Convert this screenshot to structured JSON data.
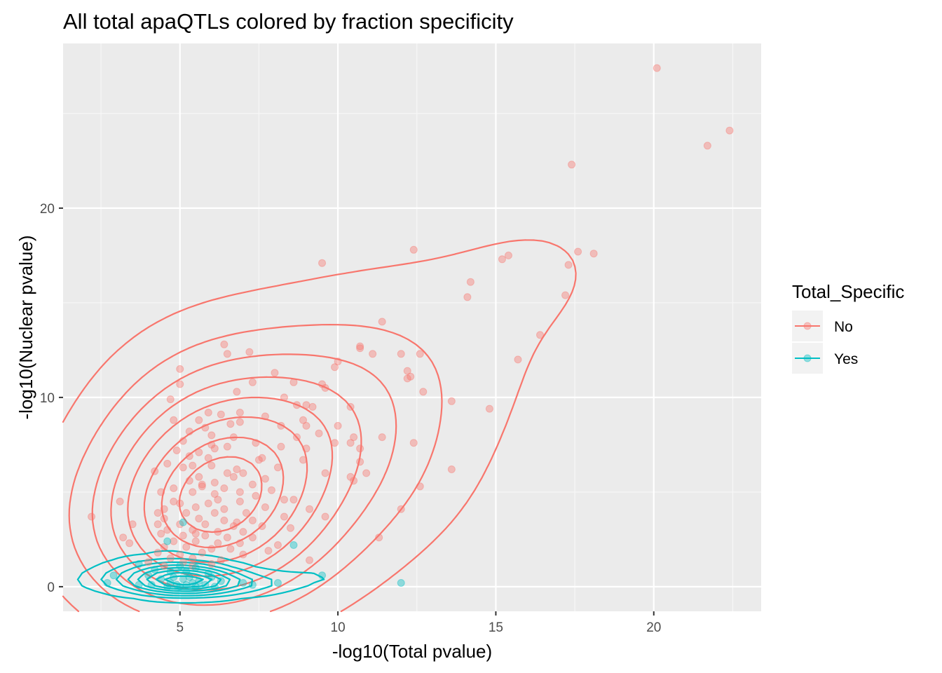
{
  "chart_data": {
    "type": "scatter",
    "title": "All total apaQTLs colored by fraction specificity",
    "xlabel": "-log10(Total pvalue)",
    "ylabel": "-log10(Nuclear pvalue)",
    "xlim": [
      1.3,
      23.4
    ],
    "ylim": [
      -1.3,
      28.7
    ],
    "x_ticks": [
      5,
      10,
      15,
      20
    ],
    "y_ticks": [
      0,
      10,
      20
    ],
    "x_tick_labels": [
      "5",
      "10",
      "15",
      "20"
    ],
    "y_tick_labels": [
      "0",
      "10",
      "20"
    ],
    "grid": true,
    "legend": {
      "title": "Total_Specific",
      "position": "right",
      "entries": [
        {
          "label": "No",
          "color": "#F8766D"
        },
        {
          "label": "Yes",
          "color": "#00BFC4"
        }
      ]
    },
    "overlay": "2d density contours per group",
    "series": [
      {
        "name": "No",
        "color": "#F8766D",
        "points": [
          [
            20.1,
            27.4
          ],
          [
            22.4,
            24.1
          ],
          [
            21.7,
            23.3
          ],
          [
            17.4,
            22.3
          ],
          [
            12.4,
            17.8
          ],
          [
            17.6,
            17.7
          ],
          [
            18.1,
            17.6
          ],
          [
            15.4,
            17.5
          ],
          [
            15.2,
            17.3
          ],
          [
            9.5,
            17.1
          ],
          [
            17.3,
            17.0
          ],
          [
            14.2,
            16.1
          ],
          [
            14.1,
            15.3
          ],
          [
            17.2,
            15.4
          ],
          [
            11.4,
            14.0
          ],
          [
            16.4,
            13.3
          ],
          [
            6.4,
            12.8
          ],
          [
            10.7,
            12.7
          ],
          [
            10.7,
            12.6
          ],
          [
            6.5,
            12.3
          ],
          [
            7.2,
            12.4
          ],
          [
            11.1,
            12.3
          ],
          [
            12.0,
            12.3
          ],
          [
            12.6,
            12.3
          ],
          [
            15.7,
            12.0
          ],
          [
            10.0,
            11.9
          ],
          [
            5.0,
            11.5
          ],
          [
            9.9,
            11.6
          ],
          [
            12.2,
            11.4
          ],
          [
            12.3,
            11.1
          ],
          [
            12.2,
            11.0
          ],
          [
            5.0,
            10.7
          ],
          [
            7.3,
            10.8
          ],
          [
            8.6,
            10.8
          ],
          [
            9.5,
            10.7
          ],
          [
            9.6,
            10.5
          ],
          [
            6.8,
            10.3
          ],
          [
            12.7,
            10.3
          ],
          [
            8.0,
            11.3
          ],
          [
            4.7,
            9.9
          ],
          [
            8.3,
            10.0
          ],
          [
            13.6,
            9.8
          ],
          [
            8.7,
            9.6
          ],
          [
            9.0,
            9.6
          ],
          [
            9.2,
            9.5
          ],
          [
            10.4,
            9.5
          ],
          [
            14.8,
            9.4
          ],
          [
            7.7,
            9.0
          ],
          [
            6.3,
            9.1
          ],
          [
            5.9,
            9.2
          ],
          [
            6.9,
            9.2
          ],
          [
            8.9,
            8.8
          ],
          [
            5.6,
            8.8
          ],
          [
            4.8,
            8.8
          ],
          [
            6.6,
            8.6
          ],
          [
            6.9,
            8.7
          ],
          [
            9.0,
            8.5
          ],
          [
            8.2,
            8.5
          ],
          [
            10.0,
            8.5
          ],
          [
            5.8,
            8.4
          ],
          [
            9.4,
            8.1
          ],
          [
            5.3,
            8.2
          ],
          [
            6.0,
            8.0
          ],
          [
            6.7,
            7.9
          ],
          [
            7.4,
            7.6
          ],
          [
            8.7,
            7.9
          ],
          [
            10.5,
            7.9
          ],
          [
            11.4,
            7.9
          ],
          [
            5.1,
            7.7
          ],
          [
            6.0,
            7.5
          ],
          [
            6.5,
            7.4
          ],
          [
            9.9,
            7.6
          ],
          [
            10.4,
            7.6
          ],
          [
            12.4,
            7.6
          ],
          [
            10.7,
            7.3
          ],
          [
            8.2,
            7.4
          ],
          [
            9.0,
            7.3
          ],
          [
            5.6,
            7.1
          ],
          [
            6.1,
            7.3
          ],
          [
            5.3,
            6.9
          ],
          [
            7.6,
            6.8
          ],
          [
            7.5,
            6.7
          ],
          [
            8.9,
            6.7
          ],
          [
            10.7,
            6.6
          ],
          [
            4.6,
            6.5
          ],
          [
            5.4,
            6.4
          ],
          [
            6.0,
            6.4
          ],
          [
            5.1,
            6.3
          ],
          [
            8.1,
            6.3
          ],
          [
            6.8,
            6.2
          ],
          [
            13.6,
            6.2
          ],
          [
            4.2,
            6.1
          ],
          [
            7.0,
            6.0
          ],
          [
            9.6,
            6.0
          ],
          [
            10.9,
            6.0
          ],
          [
            5.6,
            5.8
          ],
          [
            6.7,
            5.8
          ],
          [
            10.4,
            5.8
          ],
          [
            7.7,
            5.7
          ],
          [
            5.3,
            5.6
          ],
          [
            6.1,
            5.5
          ],
          [
            7.3,
            5.4
          ],
          [
            10.5,
            5.6
          ],
          [
            4.8,
            5.2
          ],
          [
            5.7,
            5.3
          ],
          [
            6.4,
            5.2
          ],
          [
            12.6,
            5.3
          ],
          [
            7.9,
            5.1
          ],
          [
            6.9,
            5.0
          ],
          [
            4.4,
            5.0
          ],
          [
            5.4,
            5.0
          ],
          [
            6.1,
            4.9
          ],
          [
            7.4,
            4.8
          ],
          [
            8.3,
            4.6
          ],
          [
            4.8,
            4.5
          ],
          [
            5.0,
            4.4
          ],
          [
            5.9,
            4.4
          ],
          [
            6.9,
            4.5
          ],
          [
            3.1,
            4.5
          ],
          [
            8.6,
            4.6
          ],
          [
            4.5,
            4.1
          ],
          [
            5.5,
            4.2
          ],
          [
            6.4,
            4.1
          ],
          [
            7.7,
            4.2
          ],
          [
            9.1,
            4.1
          ],
          [
            12.0,
            4.1
          ],
          [
            4.3,
            3.9
          ],
          [
            5.2,
            3.9
          ],
          [
            6.1,
            3.9
          ],
          [
            7.1,
            3.9
          ],
          [
            8.3,
            3.7
          ],
          [
            9.6,
            3.7
          ],
          [
            2.2,
            3.7
          ],
          [
            4.5,
            3.6
          ],
          [
            5.6,
            3.6
          ],
          [
            6.4,
            3.5
          ],
          [
            7.3,
            3.5
          ],
          [
            3.5,
            3.3
          ],
          [
            4.3,
            3.3
          ],
          [
            5.0,
            3.3
          ],
          [
            5.8,
            3.3
          ],
          [
            6.7,
            3.2
          ],
          [
            7.6,
            3.2
          ],
          [
            8.5,
            3.1
          ],
          [
            4.6,
            3.0
          ],
          [
            5.4,
            3.0
          ],
          [
            6.2,
            2.9
          ],
          [
            7.0,
            2.9
          ],
          [
            4.4,
            2.8
          ],
          [
            5.1,
            2.7
          ],
          [
            5.8,
            2.7
          ],
          [
            6.5,
            2.6
          ],
          [
            7.3,
            2.6
          ],
          [
            3.2,
            2.6
          ],
          [
            11.3,
            2.6
          ],
          [
            4.8,
            2.4
          ],
          [
            5.5,
            2.4
          ],
          [
            6.2,
            2.3
          ],
          [
            6.9,
            2.3
          ],
          [
            3.4,
            2.3
          ],
          [
            8.1,
            2.2
          ],
          [
            4.5,
            2.1
          ],
          [
            5.2,
            2.1
          ],
          [
            6.0,
            2.0
          ],
          [
            6.6,
            2.0
          ],
          [
            4.3,
            1.8
          ],
          [
            5.0,
            1.7
          ],
          [
            5.7,
            1.8
          ],
          [
            7.0,
            1.7
          ],
          [
            4.7,
            1.5
          ],
          [
            5.4,
            1.5
          ],
          [
            6.3,
            1.4
          ],
          [
            9.1,
            1.4
          ],
          [
            4.0,
            1.3
          ],
          [
            5.1,
            1.3
          ],
          [
            6.0,
            1.2
          ],
          [
            4.5,
            1.1
          ],
          [
            5.4,
            1.1
          ],
          [
            5.7,
            5.4
          ],
          [
            6.5,
            6.0
          ],
          [
            5.9,
            6.8
          ],
          [
            4.9,
            7.2
          ],
          [
            6.2,
            4.6
          ],
          [
            6.8,
            3.4
          ],
          [
            5.5,
            2.8
          ],
          [
            7.8,
            1.9
          ]
        ]
      },
      {
        "name": "Yes",
        "color": "#00BFC4",
        "points": [
          [
            5.1,
            3.4
          ],
          [
            4.6,
            2.4
          ],
          [
            8.6,
            2.2
          ],
          [
            3.7,
            1.2
          ],
          [
            5.0,
            1.1
          ],
          [
            5.5,
            1.0
          ],
          [
            4.2,
            0.9
          ],
          [
            4.7,
            0.8
          ],
          [
            5.2,
            0.8
          ],
          [
            5.9,
            0.7
          ],
          [
            2.9,
            0.6
          ],
          [
            9.5,
            0.6
          ],
          [
            4.0,
            0.6
          ],
          [
            4.8,
            0.5
          ],
          [
            5.3,
            0.5
          ],
          [
            6.0,
            0.5
          ],
          [
            4.4,
            0.4
          ],
          [
            5.1,
            0.4
          ],
          [
            5.6,
            0.3
          ],
          [
            6.3,
            0.3
          ],
          [
            8.1,
            0.2
          ],
          [
            12.0,
            0.2
          ],
          [
            2.7,
            0.2
          ],
          [
            4.7,
            0.2
          ],
          [
            5.4,
            0.2
          ],
          [
            7.0,
            0.2
          ],
          [
            3.7,
            0.1
          ],
          [
            4.1,
            0.1
          ],
          [
            4.9,
            0.1
          ],
          [
            5.2,
            0.1
          ],
          [
            5.8,
            0.1
          ],
          [
            7.3,
            0.1
          ],
          [
            4.6,
            0.0
          ],
          [
            5.0,
            0.0
          ],
          [
            5.5,
            0.0
          ],
          [
            6.1,
            0.0
          ]
        ]
      }
    ]
  }
}
